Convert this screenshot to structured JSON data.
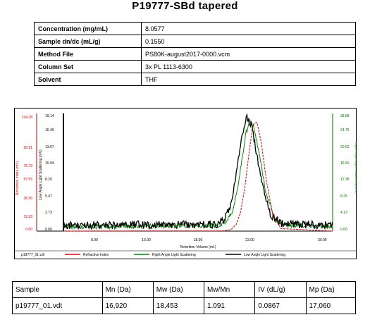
{
  "title": "P19777-SBd tapered",
  "info_rows": [
    {
      "label": "Concentration (mg/mL)",
      "value": "8.0577"
    },
    {
      "label": "Sample dn/dc (mL/g)",
      "value": "0.1550"
    },
    {
      "label": "Method File",
      "value": "PS80K-august2017-0000.vcm"
    },
    {
      "label": "Column Set",
      "value": "3x PL 1113-6300"
    },
    {
      "label": "Solvent",
      "value": "THF"
    }
  ],
  "chart_data": {
    "type": "line",
    "xlabel": "Retention Volume (mL)",
    "xlim": [
      5.0,
      31.0
    ],
    "x_ticks": [
      "8.00",
      "13.00",
      "18.00",
      "23.00",
      "30.00"
    ],
    "x_tick_values": [
      8,
      13,
      18,
      23,
      30
    ],
    "axes": [
      {
        "name": "Refractive Index (mV)",
        "color": "#cc0000",
        "ticks": [
          "134.28",
          "95.91",
          "76.73",
          "57.55",
          "38.36",
          "19.18",
          "0.00"
        ]
      },
      {
        "name": "Low Angle Light Scattering (mV)",
        "color": "#000000",
        "ticks": [
          "19.14",
          "16.40",
          "13.67",
          "10.94",
          "8.20",
          "5.47",
          "2.73",
          "0.00"
        ]
      },
      {
        "name": "Right Angle Light Scattering (mV)",
        "color": "#007700",
        "ticks": [
          "28.88",
          "24.75",
          "20.63",
          "16.50",
          "12.38",
          "8.25",
          "4.13",
          "0.00"
        ]
      }
    ],
    "grid": false,
    "series": [
      {
        "name": "Refractive Index",
        "color": "#dd0000",
        "x": [
          5.0,
          20.5,
          21.2,
          21.7,
          22.1,
          22.5,
          22.9,
          23.3,
          23.7,
          24.1,
          24.6,
          25.2,
          26.0,
          31.0
        ],
        "y": [
          0.0,
          0.3,
          2.0,
          8.0,
          22.0,
          50.0,
          90.0,
          126.0,
          129.0,
          105.0,
          60.0,
          20.0,
          3.0,
          0.0
        ]
      },
      {
        "name": "Right Angle Light Scattering",
        "color": "#008800",
        "x": [
          5.0,
          20.0,
          20.8,
          21.4,
          21.8,
          22.2,
          22.6,
          23.0,
          23.4,
          23.9,
          24.5,
          25.3,
          26.3,
          31.0
        ],
        "y": [
          0.5,
          0.8,
          2.0,
          5.0,
          10.0,
          17.0,
          24.0,
          27.5,
          26.0,
          19.0,
          10.0,
          3.0,
          1.0,
          0.5
        ]
      },
      {
        "name": "Low Angle Light Scattering",
        "color": "#000000",
        "x": [
          5.0,
          20.0,
          20.6,
          21.1,
          21.5,
          21.9,
          22.3,
          22.7,
          23.1,
          23.6,
          24.2,
          25.0,
          26.0,
          31.0
        ],
        "y": [
          0.3,
          0.5,
          1.5,
          3.5,
          7.0,
          11.5,
          16.0,
          18.6,
          17.5,
          13.0,
          7.0,
          2.0,
          0.6,
          0.3
        ]
      }
    ],
    "legend_file": "p19777_01.vdt",
    "legend": [
      "Refractive Index",
      "Right Angle Light Scattering",
      "Low Angle Light Scattering"
    ]
  },
  "results": {
    "headers": [
      "Sample",
      "Mn (Da)",
      "Mw (Da)",
      "Mw/Mn",
      "IV (dL/g)",
      "Mp (Da)"
    ],
    "rows": [
      [
        "p19777_01.vdt",
        "16,920",
        "18,453",
        "1.091",
        "0.0867",
        "17,060"
      ]
    ]
  }
}
